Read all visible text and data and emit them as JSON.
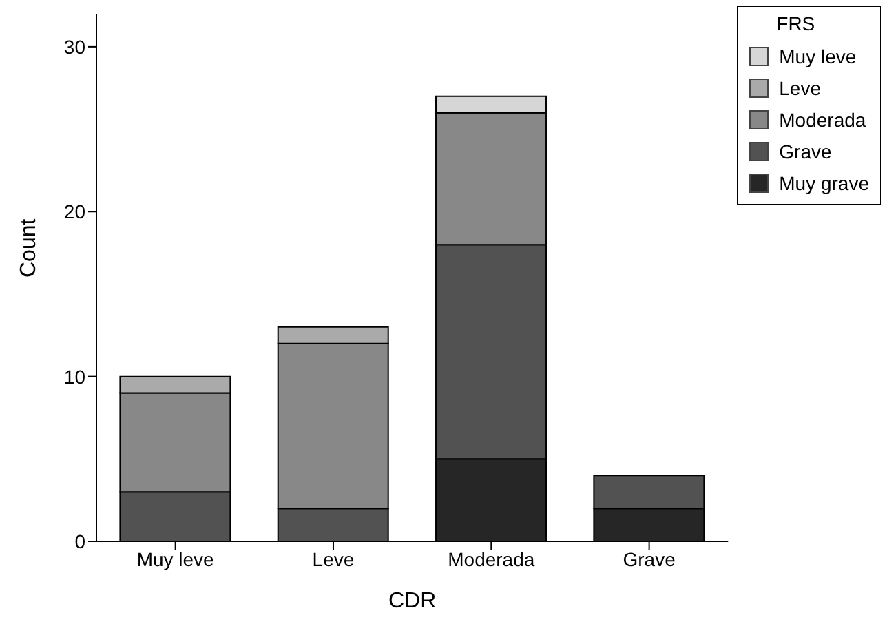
{
  "chart_data": {
    "type": "bar",
    "stacked": true,
    "xlabel": "CDR",
    "ylabel": "Count",
    "legend_title": "FRS",
    "legend": "top right",
    "grid": false,
    "categories": [
      "Muy leve",
      "Leve",
      "Moderada",
      "Grave"
    ],
    "ylim": [
      0,
      32
    ],
    "yticks": [
      0,
      10,
      20,
      30
    ],
    "series": [
      {
        "name": "Muy grave",
        "color": "#262626",
        "values": [
          0,
          0,
          5,
          2
        ]
      },
      {
        "name": "Grave",
        "color": "#525252",
        "values": [
          3,
          2,
          13,
          2
        ]
      },
      {
        "name": "Moderada",
        "color": "#888888",
        "values": [
          6,
          10,
          8,
          0
        ]
      },
      {
        "name": "Leve",
        "color": "#aaaaaa",
        "values": [
          1,
          1,
          0,
          0
        ]
      },
      {
        "name": "Muy leve",
        "color": "#d6d6d6",
        "values": [
          0,
          0,
          1,
          0
        ]
      }
    ]
  }
}
